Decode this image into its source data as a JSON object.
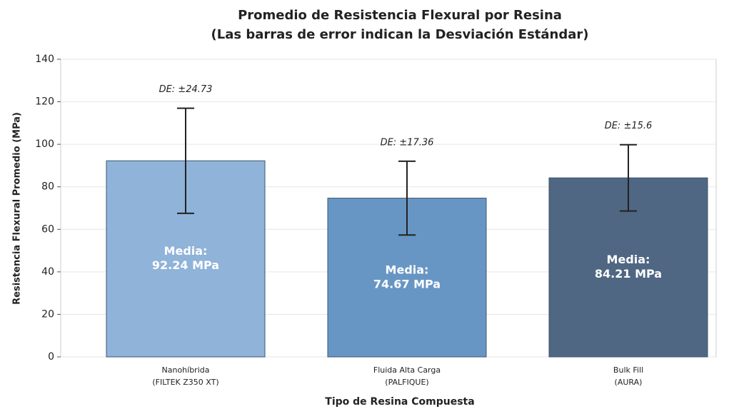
{
  "chart_data": {
    "type": "bar",
    "title": [
      "Promedio de Resistencia Flexural por Resina",
      "(Las barras de error indican la Desviación Estándar)"
    ],
    "x_label": "Tipo de Resina Compuesta",
    "y_label": "Resistencia Flexural Promedio (MPa)",
    "categories": [
      [
        "Nanohíbrida",
        "(FILTEK Z350 XT)"
      ],
      [
        "Fluida Alta Carga",
        "(PALFIQUE)"
      ],
      [
        "Bulk Fill",
        "(AURA)"
      ]
    ],
    "values": [
      92.24,
      74.67,
      84.21
    ],
    "value_labels": [
      [
        "Media:",
        "92.24 MPa"
      ],
      [
        "Media:",
        "74.67 MPa"
      ],
      [
        "Media:",
        "84.21 MPa"
      ]
    ],
    "errors": [
      24.73,
      17.36,
      15.6
    ],
    "error_labels": [
      "DE: ±24.73",
      "DE: ±17.36",
      "DE: ±15.6"
    ],
    "colors": [
      "#8fb3d9",
      "#6796c4",
      "#4f6782"
    ],
    "ylim": [
      0,
      140
    ],
    "yticks": [
      0,
      20,
      40,
      60,
      80,
      100,
      120,
      140
    ],
    "grid": true
  }
}
